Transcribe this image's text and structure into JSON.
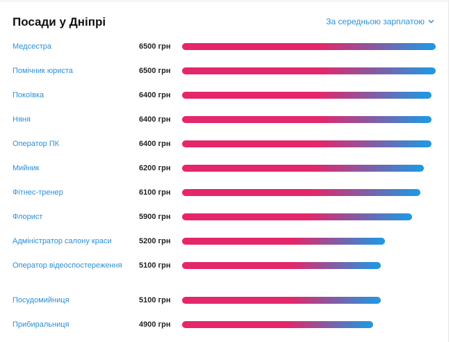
{
  "title": "Посади у Дніпрі",
  "sort": {
    "label": "За середньою зарплатою",
    "icon": "chevron-down-icon"
  },
  "max_value": 6500,
  "currency": "грн",
  "items": [
    {
      "label": "Медсестра",
      "value": 6500,
      "value_text": "6500 грн"
    },
    {
      "label": "Помічник юриста",
      "value": 6500,
      "value_text": "6500 грн"
    },
    {
      "label": "Покоївка",
      "value": 6400,
      "value_text": "6400 грн"
    },
    {
      "label": "Няня",
      "value": 6400,
      "value_text": "6400 грн"
    },
    {
      "label": "Оператор ПК",
      "value": 6400,
      "value_text": "6400 грн"
    },
    {
      "label": "Мийник",
      "value": 6200,
      "value_text": "6200 грн"
    },
    {
      "label": "Фітнес-тренер",
      "value": 6100,
      "value_text": "6100 грн"
    },
    {
      "label": "Флорист",
      "value": 5900,
      "value_text": "5900 грн"
    },
    {
      "label": "Адміністратор салону краси",
      "value": 5200,
      "value_text": "5200 грн"
    },
    {
      "label": "Оператор відеоспостереження",
      "value": 5100,
      "value_text": "5100 грн"
    },
    {
      "label": "Посудомийниця",
      "value": 5100,
      "value_text": "5100 грн"
    },
    {
      "label": "Прибиральниця",
      "value": 4900,
      "value_text": "4900 грн"
    }
  ]
}
